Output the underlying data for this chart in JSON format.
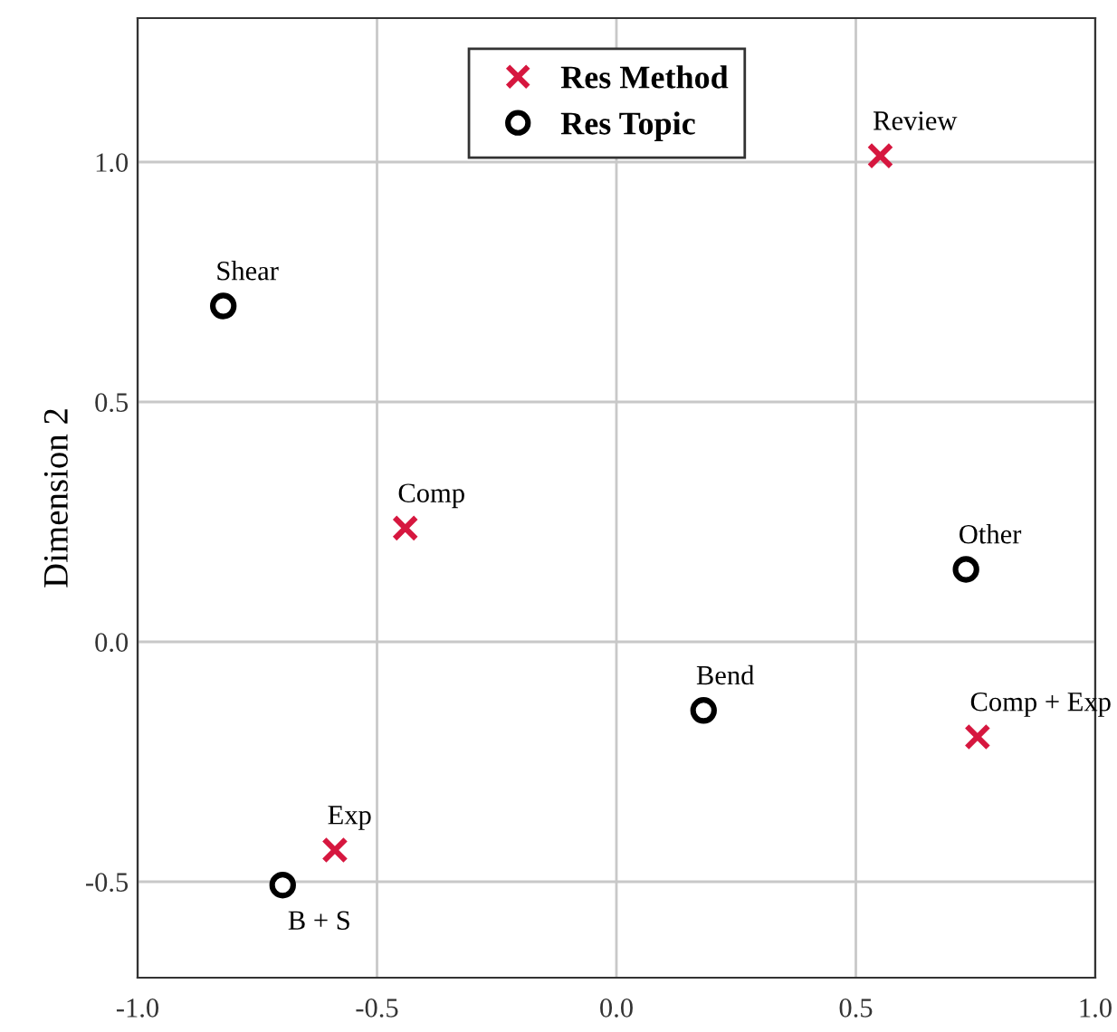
{
  "chart_data": {
    "type": "scatter",
    "ylabel": "Dimension 2",
    "xlim": [
      -1.0,
      1.0
    ],
    "ylim": [
      -0.7,
      1.3
    ],
    "xticks": [
      {
        "value": -1.0,
        "label": "-1.0"
      },
      {
        "value": -0.5,
        "label": "-0.5"
      },
      {
        "value": 0.0,
        "label": "0.0"
      },
      {
        "value": 0.5,
        "label": "0.5"
      },
      {
        "value": 1.0,
        "label": "1.0"
      }
    ],
    "yticks": [
      {
        "value": -0.5,
        "label": "-0.5"
      },
      {
        "value": 0.0,
        "label": "0.0"
      },
      {
        "value": 0.5,
        "label": "0.5"
      },
      {
        "value": 1.0,
        "label": "1.0"
      }
    ],
    "grid": true,
    "legend": "top",
    "series": [
      {
        "name": "Res Method",
        "color": "#d6173f",
        "marker": "cross",
        "x": [
          0.551,
          -0.441,
          0.754,
          -0.588
        ],
        "values": [
          1.013,
          0.237,
          -0.198,
          -0.434
        ]
      },
      {
        "name": "Res Topic",
        "color": "#000000",
        "marker": "circle",
        "x": [
          -0.821,
          0.73,
          0.182,
          -0.697
        ],
        "values": [
          0.7,
          0.151,
          -0.143,
          -0.507
        ]
      }
    ],
    "annotations": [
      {
        "text": "Review",
        "x": 0.551,
        "y": 1.013
      },
      {
        "text": "Comp",
        "x": -0.441,
        "y": 0.237
      },
      {
        "text": "Comp + Exp",
        "x": 0.754,
        "y": -0.198
      },
      {
        "text": "Exp",
        "x": -0.588,
        "y": -0.434
      },
      {
        "text": "Shear",
        "x": -0.821,
        "y": 0.7
      },
      {
        "text": "Other",
        "x": 0.73,
        "y": 0.151
      },
      {
        "text": "Bend",
        "x": 0.182,
        "y": -0.143
      },
      {
        "text": "B + S",
        "x": -0.697,
        "y": -0.507
      }
    ]
  }
}
